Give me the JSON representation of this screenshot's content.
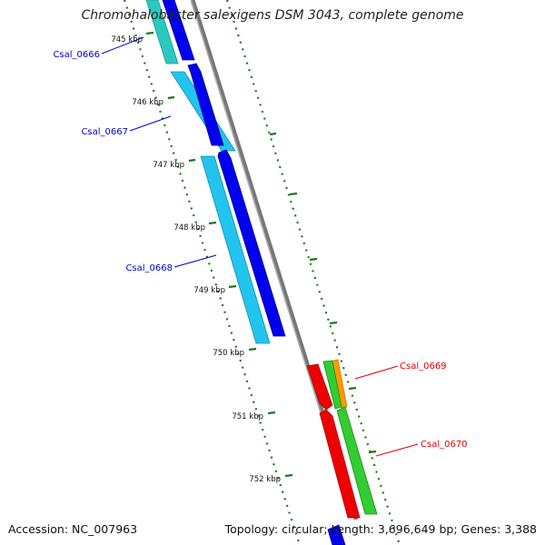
{
  "title": "Chromohalobacter salexigens DSM 3043, complete genome",
  "footer": {
    "accession": "Accession: NC_007963",
    "genome_info": "Topology: circular; Length: 3,696,649 bp; Genes: 3,388"
  },
  "colors": {
    "backbone": "#888888",
    "tick": "#1a7a1a",
    "label_forward": "#0000cc",
    "label_reverse": "#dd0000",
    "cds_blue": "#0000ee",
    "cds_cyan": "#22c4ee",
    "cds_teal": "#2cc8c0",
    "cds_red": "#ee0000",
    "cds_green": "#33cc33",
    "cds_orange": "#ff9900"
  },
  "ticks": [
    "745 kbp",
    "746 kbp",
    "747 kbp",
    "748 kbp",
    "749 kbp",
    "750 kbp",
    "751 kbp",
    "752 kbp"
  ],
  "genes": [
    {
      "name": "Csal_0666"
    },
    {
      "name": "Csal_0667"
    },
    {
      "name": "Csal_0668"
    },
    {
      "name": "Csal_0669"
    },
    {
      "name": "Csal_0670"
    }
  ]
}
